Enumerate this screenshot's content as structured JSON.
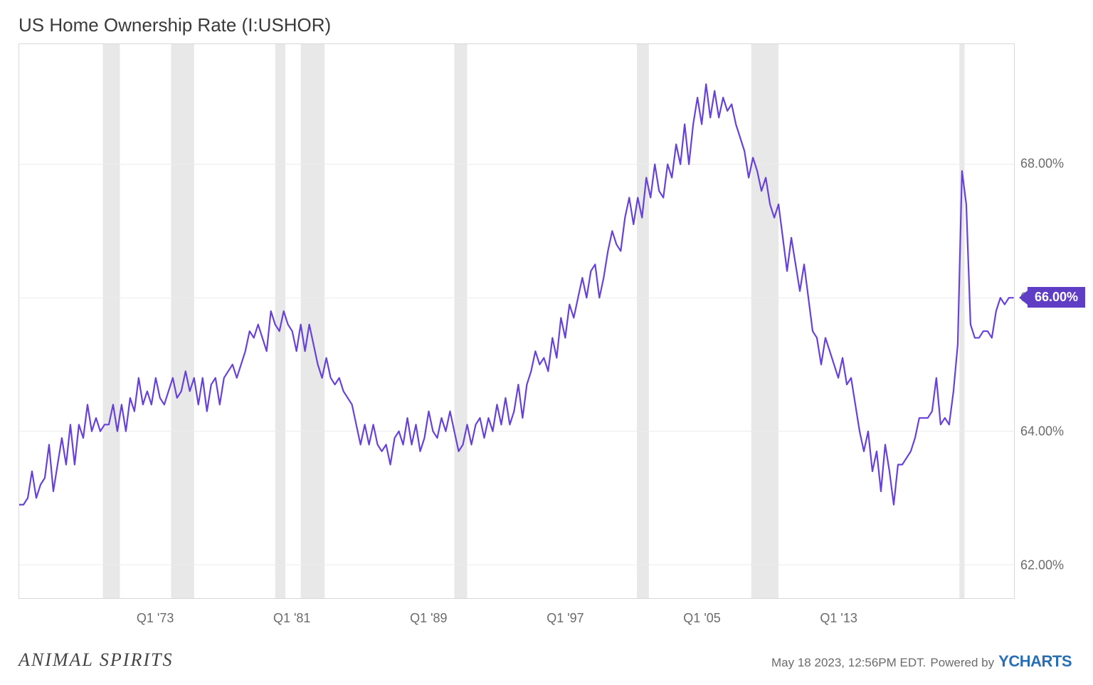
{
  "chart": {
    "type": "line",
    "title": "US Home Ownership Rate (I:USHOR)",
    "line_color": "#6741d9",
    "line_width": 2.2,
    "background_color": "#ffffff",
    "plot_border_color": "#d8d8d8",
    "recession_band_color": "#e8e8e8",
    "gridline_color": "#ececec",
    "x_range_years": [
      1965,
      2023.3
    ],
    "y_range": [
      61.5,
      69.8
    ],
    "y_ticks": [
      {
        "value": 62.0,
        "label": "62.00%"
      },
      {
        "value": 64.0,
        "label": "64.00%"
      },
      {
        "value": 66.0,
        "label": "66.00%"
      },
      {
        "value": 68.0,
        "label": "68.00%"
      }
    ],
    "x_ticks": [
      {
        "year": 1973.0,
        "label": "Q1 '73"
      },
      {
        "year": 1981.0,
        "label": "Q1 '81"
      },
      {
        "year": 1989.0,
        "label": "Q1 '89"
      },
      {
        "year": 1997.0,
        "label": "Q1 '97"
      },
      {
        "year": 2005.0,
        "label": "Q1 '05"
      },
      {
        "year": 2013.0,
        "label": "Q1 '13"
      }
    ],
    "recession_bands": [
      {
        "start": 1969.9,
        "end": 1970.9
      },
      {
        "start": 1973.9,
        "end": 1975.25
      },
      {
        "start": 1980.0,
        "end": 1980.6
      },
      {
        "start": 1981.5,
        "end": 1982.9
      },
      {
        "start": 1990.5,
        "end": 1991.25
      },
      {
        "start": 2001.2,
        "end": 2001.9
      },
      {
        "start": 2007.9,
        "end": 2009.5
      },
      {
        "start": 2020.1,
        "end": 2020.4
      }
    ],
    "callout": {
      "value": 66.0,
      "label": "66.00%"
    },
    "series": [
      62.9,
      62.9,
      63.0,
      63.4,
      63.0,
      63.2,
      63.3,
      63.8,
      63.1,
      63.5,
      63.9,
      63.5,
      64.1,
      63.5,
      64.1,
      63.9,
      64.4,
      64.0,
      64.2,
      64.0,
      64.1,
      64.1,
      64.4,
      64.0,
      64.4,
      64.0,
      64.5,
      64.3,
      64.8,
      64.4,
      64.6,
      64.4,
      64.8,
      64.5,
      64.4,
      64.6,
      64.8,
      64.5,
      64.6,
      64.9,
      64.6,
      64.8,
      64.4,
      64.8,
      64.3,
      64.7,
      64.8,
      64.4,
      64.8,
      64.9,
      65.0,
      64.8,
      65.0,
      65.2,
      65.5,
      65.4,
      65.6,
      65.4,
      65.2,
      65.8,
      65.6,
      65.5,
      65.8,
      65.6,
      65.5,
      65.2,
      65.6,
      65.2,
      65.6,
      65.3,
      65.0,
      64.8,
      65.1,
      64.8,
      64.7,
      64.8,
      64.6,
      64.5,
      64.4,
      64.1,
      63.8,
      64.1,
      63.8,
      64.1,
      63.8,
      63.7,
      63.8,
      63.5,
      63.9,
      64.0,
      63.8,
      64.2,
      63.8,
      64.1,
      63.7,
      63.9,
      64.3,
      64.0,
      63.9,
      64.2,
      64.0,
      64.3,
      64.0,
      63.7,
      63.8,
      64.1,
      63.8,
      64.1,
      64.2,
      63.9,
      64.2,
      64.0,
      64.4,
      64.1,
      64.5,
      64.1,
      64.3,
      64.7,
      64.2,
      64.7,
      64.9,
      65.2,
      65.0,
      65.1,
      64.9,
      65.4,
      65.1,
      65.7,
      65.4,
      65.9,
      65.7,
      66.0,
      66.3,
      66.0,
      66.4,
      66.5,
      66.0,
      66.3,
      66.7,
      67.0,
      66.8,
      66.7,
      67.2,
      67.5,
      67.1,
      67.5,
      67.2,
      67.8,
      67.5,
      68.0,
      67.6,
      67.5,
      68.0,
      67.8,
      68.3,
      68.0,
      68.6,
      68.0,
      68.6,
      69.0,
      68.6,
      69.2,
      68.7,
      69.1,
      68.7,
      69.0,
      68.8,
      68.9,
      68.6,
      68.4,
      68.2,
      67.8,
      68.1,
      67.9,
      67.6,
      67.8,
      67.4,
      67.2,
      67.4,
      66.9,
      66.4,
      66.9,
      66.5,
      66.1,
      66.5,
      66.0,
      65.5,
      65.4,
      65.0,
      65.4,
      65.2,
      65.0,
      64.8,
      65.1,
      64.7,
      64.8,
      64.4,
      64.0,
      63.7,
      64.0,
      63.4,
      63.7,
      63.1,
      63.8,
      63.4,
      62.9,
      63.5,
      63.5,
      63.6,
      63.7,
      63.9,
      64.2,
      64.2,
      64.2,
      64.3,
      64.8,
      64.1,
      64.2,
      64.1,
      64.6,
      65.3,
      67.9,
      67.4,
      65.6,
      65.4,
      65.4,
      65.5,
      65.5,
      65.4,
      65.8,
      66.0,
      65.9,
      66.0,
      66.0
    ],
    "series_start_year": 1965.0,
    "series_step_years": 0.25
  },
  "footer": {
    "left_brand": "ANIMAL SPIRITS",
    "timestamp": "May 18 2023, 12:56PM EDT.",
    "powered_by_text": "Powered by",
    "powered_by_brand": "CHARTS"
  }
}
